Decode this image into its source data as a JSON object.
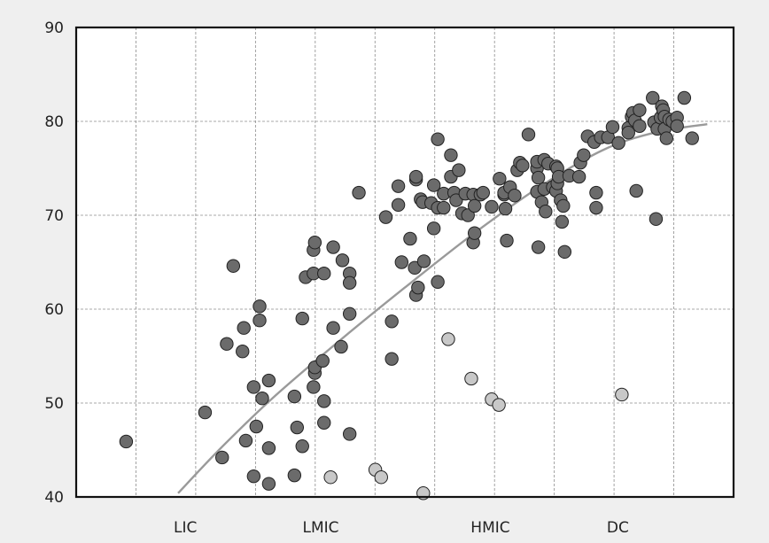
{
  "chart_data": {
    "type": "scatter",
    "title": "",
    "xlabel": "",
    "ylabel": "",
    "ylim": [
      40,
      90
    ],
    "y_ticks": [
      40,
      50,
      60,
      70,
      80,
      90
    ],
    "x_category_labels": [
      {
        "label": "LIC",
        "x": 0.166
      },
      {
        "label": "LMIC",
        "x": 0.372
      },
      {
        "label": "HMIC",
        "x": 0.63
      },
      {
        "label": "DC",
        "x": 0.824
      }
    ],
    "grid": true,
    "colors": {
      "main_points": "#6b6b6b",
      "light_points": "#c8c8c8",
      "trend": "#9a9a9a",
      "point_edge": "#222222",
      "background": "#efefef"
    },
    "series": [
      {
        "points": [
          [
            0.076,
            45.9
          ],
          [
            0.196,
            49.0
          ],
          [
            0.222,
            44.2
          ],
          [
            0.229,
            56.3
          ],
          [
            0.239,
            64.6
          ],
          [
            0.253,
            55.5
          ],
          [
            0.255,
            58.0
          ],
          [
            0.258,
            46.0
          ],
          [
            0.27,
            42.2
          ],
          [
            0.27,
            51.7
          ],
          [
            0.274,
            47.5
          ],
          [
            0.279,
            60.3
          ],
          [
            0.279,
            58.8
          ],
          [
            0.283,
            50.5
          ],
          [
            0.293,
            52.4
          ],
          [
            0.293,
            45.2
          ],
          [
            0.293,
            41.4
          ],
          [
            0.332,
            50.7
          ],
          [
            0.332,
            42.3
          ],
          [
            0.336,
            47.4
          ],
          [
            0.344,
            45.4
          ],
          [
            0.344,
            59.0
          ],
          [
            0.349,
            63.4
          ],
          [
            0.361,
            66.3
          ],
          [
            0.361,
            63.8
          ],
          [
            0.361,
            51.7
          ],
          [
            0.363,
            53.2
          ],
          [
            0.363,
            53.8
          ],
          [
            0.363,
            67.1
          ],
          [
            0.375,
            54.5
          ],
          [
            0.377,
            50.2
          ],
          [
            0.377,
            47.9
          ],
          [
            0.377,
            63.8
          ],
          [
            0.391,
            66.6
          ],
          [
            0.391,
            58.0
          ],
          [
            0.403,
            56.0
          ],
          [
            0.405,
            65.2
          ],
          [
            0.416,
            63.8
          ],
          [
            0.416,
            62.8
          ],
          [
            0.416,
            59.5
          ],
          [
            0.416,
            46.7
          ],
          [
            0.43,
            72.4
          ],
          [
            0.471,
            69.8
          ],
          [
            0.48,
            58.7
          ],
          [
            0.48,
            54.7
          ],
          [
            0.49,
            73.1
          ],
          [
            0.49,
            71.1
          ],
          [
            0.495,
            65.0
          ],
          [
            0.508,
            67.5
          ],
          [
            0.515,
            64.4
          ],
          [
            0.517,
            73.8
          ],
          [
            0.517,
            74.1
          ],
          [
            0.517,
            61.5
          ],
          [
            0.52,
            62.3
          ],
          [
            0.524,
            71.7
          ],
          [
            0.527,
            71.4
          ],
          [
            0.529,
            65.1
          ],
          [
            0.54,
            71.3
          ],
          [
            0.544,
            68.6
          ],
          [
            0.544,
            73.2
          ],
          [
            0.55,
            62.9
          ],
          [
            0.55,
            78.1
          ],
          [
            0.55,
            70.8
          ],
          [
            0.559,
            70.8
          ],
          [
            0.559,
            72.3
          ],
          [
            0.57,
            76.4
          ],
          [
            0.57,
            74.1
          ],
          [
            0.575,
            72.4
          ],
          [
            0.578,
            71.6
          ],
          [
            0.582,
            74.8
          ],
          [
            0.587,
            70.2
          ],
          [
            0.592,
            72.3
          ],
          [
            0.596,
            70.0
          ],
          [
            0.604,
            72.2
          ],
          [
            0.604,
            67.1
          ],
          [
            0.606,
            71.0
          ],
          [
            0.606,
            68.1
          ],
          [
            0.615,
            72.2
          ],
          [
            0.619,
            72.4
          ],
          [
            0.632,
            70.9
          ],
          [
            0.644,
            73.9
          ],
          [
            0.651,
            72.2
          ],
          [
            0.651,
            72.4
          ],
          [
            0.653,
            70.7
          ],
          [
            0.655,
            67.3
          ],
          [
            0.66,
            73.0
          ],
          [
            0.667,
            72.1
          ],
          [
            0.671,
            74.8
          ],
          [
            0.675,
            75.6
          ],
          [
            0.679,
            75.3
          ],
          [
            0.688,
            78.6
          ],
          [
            0.701,
            75.0
          ],
          [
            0.701,
            75.7
          ],
          [
            0.701,
            72.5
          ],
          [
            0.703,
            74.0
          ],
          [
            0.703,
            66.6
          ],
          [
            0.708,
            71.4
          ],
          [
            0.712,
            72.8
          ],
          [
            0.712,
            75.9
          ],
          [
            0.714,
            70.4
          ],
          [
            0.718,
            75.5
          ],
          [
            0.725,
            73.0
          ],
          [
            0.73,
            72.6
          ],
          [
            0.73,
            75.2
          ],
          [
            0.732,
            75.0
          ],
          [
            0.732,
            73.4
          ],
          [
            0.734,
            74.1
          ],
          [
            0.737,
            71.6
          ],
          [
            0.739,
            69.3
          ],
          [
            0.741,
            71.0
          ],
          [
            0.743,
            66.1
          ],
          [
            0.75,
            74.2
          ],
          [
            0.765,
            74.1
          ],
          [
            0.767,
            75.6
          ],
          [
            0.772,
            76.4
          ],
          [
            0.778,
            78.4
          ],
          [
            0.788,
            77.8
          ],
          [
            0.791,
            72.4
          ],
          [
            0.791,
            70.8
          ],
          [
            0.798,
            78.3
          ],
          [
            0.809,
            78.3
          ],
          [
            0.816,
            79.4
          ],
          [
            0.825,
            77.7
          ],
          [
            0.84,
            79.3
          ],
          [
            0.84,
            78.8
          ],
          [
            0.845,
            80.5
          ],
          [
            0.847,
            80.9
          ],
          [
            0.85,
            80.1
          ],
          [
            0.852,
            72.6
          ],
          [
            0.857,
            81.2
          ],
          [
            0.857,
            79.5
          ],
          [
            0.877,
            82.5
          ],
          [
            0.879,
            79.9
          ],
          [
            0.882,
            69.6
          ],
          [
            0.884,
            79.2
          ],
          [
            0.889,
            80.4
          ],
          [
            0.891,
            81.6
          ],
          [
            0.893,
            81.2
          ],
          [
            0.895,
            80.5
          ],
          [
            0.895,
            79.2
          ],
          [
            0.898,
            78.2
          ],
          [
            0.902,
            80.2
          ],
          [
            0.907,
            80.0
          ],
          [
            0.914,
            80.4
          ],
          [
            0.914,
            79.5
          ],
          [
            0.925,
            82.5
          ],
          [
            0.937,
            78.2
          ]
        ]
      },
      {
        "points": [
          [
            0.387,
            42.1
          ],
          [
            0.455,
            42.9
          ],
          [
            0.464,
            42.1
          ],
          [
            0.528,
            40.4
          ],
          [
            0.566,
            56.8
          ],
          [
            0.601,
            52.6
          ],
          [
            0.632,
            50.4
          ],
          [
            0.643,
            49.8
          ],
          [
            0.83,
            50.9
          ]
        ]
      }
    ],
    "trend_line": {
      "type": "curve",
      "points": [
        [
          0.155,
          40.4
        ],
        [
          0.22,
          45.2
        ],
        [
          0.3,
          50.6
        ],
        [
          0.4,
          56.6
        ],
        [
          0.5,
          62.3
        ],
        [
          0.6,
          67.8
        ],
        [
          0.7,
          72.8
        ],
        [
          0.8,
          76.9
        ],
        [
          0.88,
          78.8
        ],
        [
          0.96,
          79.7
        ]
      ]
    }
  }
}
